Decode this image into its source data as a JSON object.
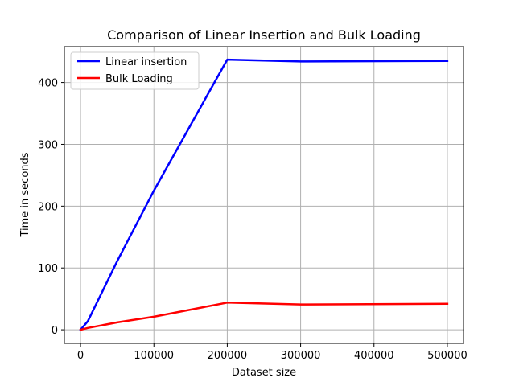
{
  "chart_data": {
    "type": "line",
    "title": "Comparison of Linear Insertion and Bulk Loading",
    "xlabel": "Dataset size",
    "ylabel": "Time in seconds",
    "xlim": [
      -22000,
      522000
    ],
    "ylim": [
      -22,
      458
    ],
    "xticks": [
      0,
      100000,
      200000,
      300000,
      400000,
      500000
    ],
    "yticks": [
      0,
      100,
      200,
      300,
      400
    ],
    "grid": true,
    "legend_position": "top-left",
    "series": [
      {
        "name": "Linear insertion",
        "color": "#0000ff",
        "x": [
          0,
          10000,
          50000,
          100000,
          200000,
          300000,
          500000
        ],
        "y": [
          0,
          14,
          111,
          225,
          437,
          434,
          435
        ]
      },
      {
        "name": "Bulk Loading",
        "color": "#ff0000",
        "x": [
          0,
          10000,
          50000,
          100000,
          200000,
          300000,
          500000
        ],
        "y": [
          0,
          3,
          12,
          21,
          44,
          41,
          42
        ]
      }
    ]
  }
}
